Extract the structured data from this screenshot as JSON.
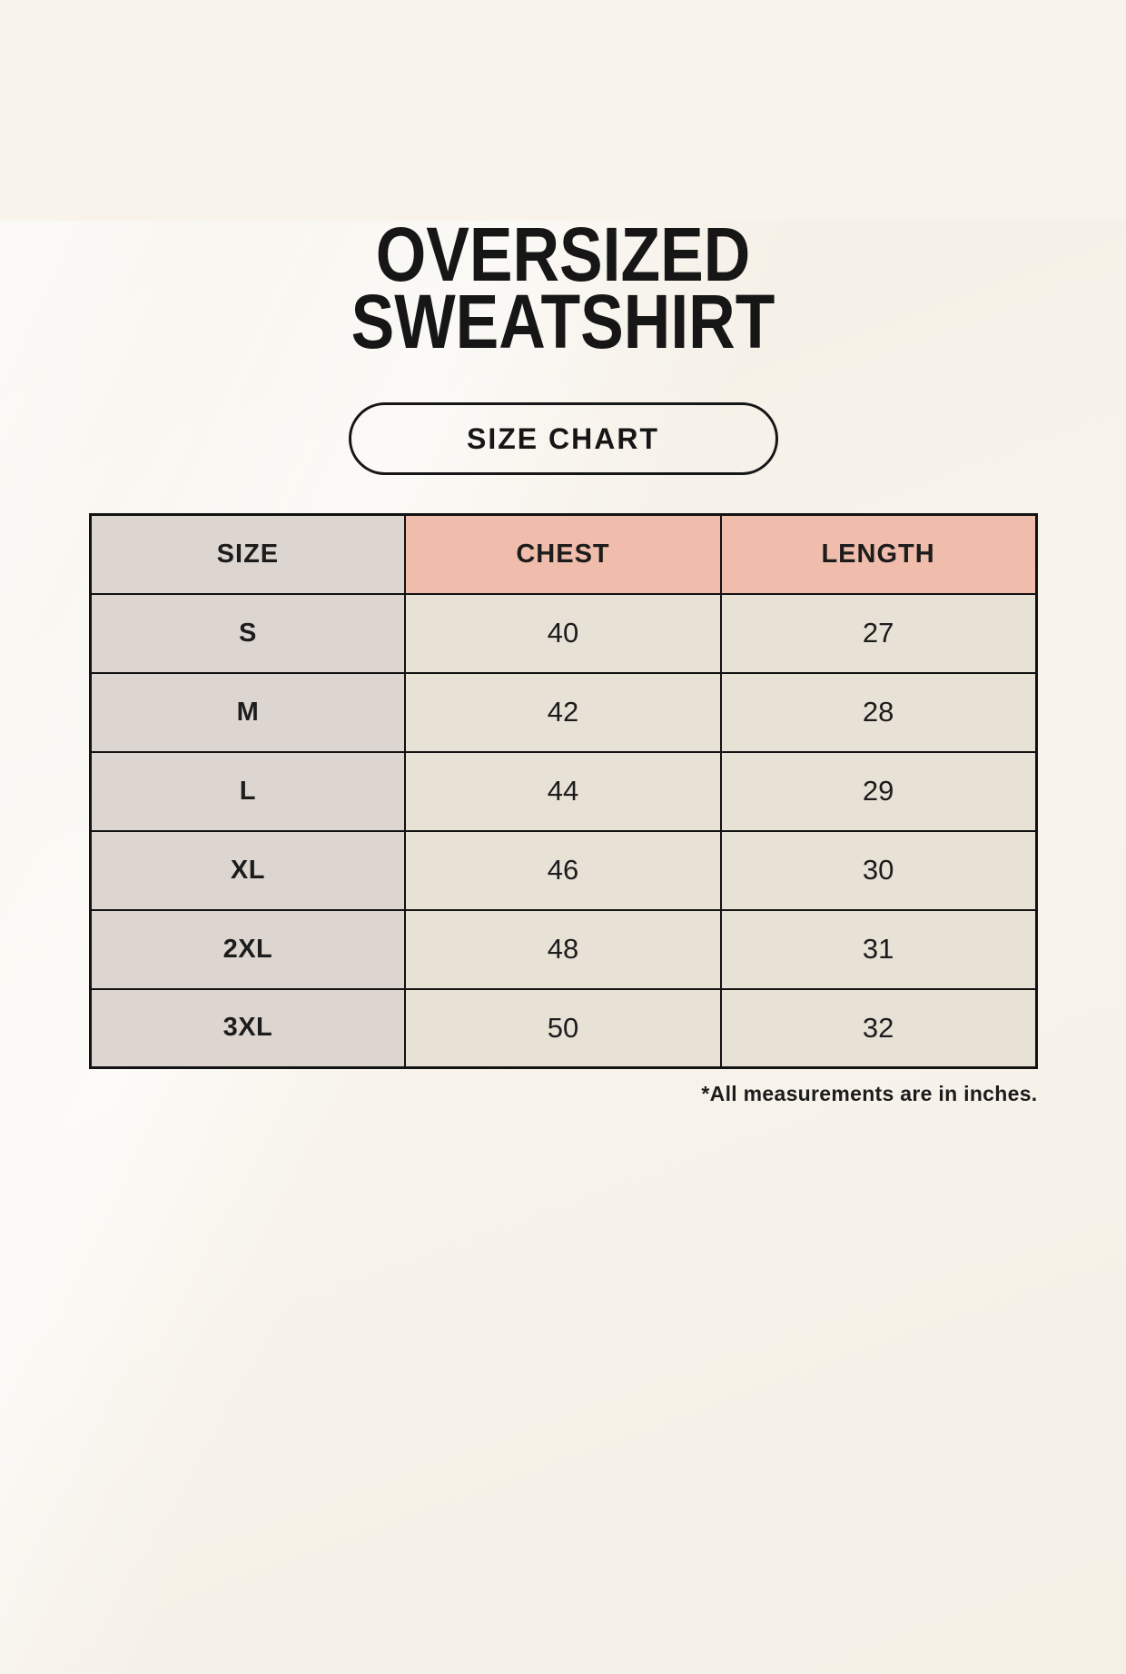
{
  "header": {
    "title_line1": "OVERSIZED",
    "title_line2": "SWEATSHIRT",
    "badge_label": "SIZE CHART"
  },
  "chart_data": {
    "type": "table",
    "title": "OVERSIZED SWEATSHIRT",
    "subtitle": "SIZE CHART",
    "columns": [
      "SIZE",
      "CHEST",
      "LENGTH"
    ],
    "rows": [
      [
        "S",
        "40",
        "27"
      ],
      [
        "M",
        "42",
        "28"
      ],
      [
        "L",
        "44",
        "29"
      ],
      [
        "XL",
        "46",
        "30"
      ],
      [
        "2XL",
        "48",
        "31"
      ],
      [
        "3XL",
        "50",
        "32"
      ]
    ],
    "units": "inches",
    "footnote": "*All measurements are in inches."
  },
  "colors": {
    "background": "#f8f4ec",
    "header_accent_pink": "#f0bcab",
    "size_column_gray": "#ddd6d0",
    "cell_cream": "#e8e1d6",
    "border": "#121212",
    "text": "#1c1c1c"
  }
}
